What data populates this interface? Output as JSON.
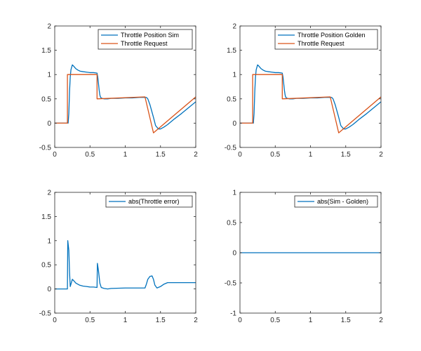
{
  "colors": {
    "series_blue": "#0072BD",
    "series_orange": "#D95319",
    "axes": "#262626",
    "background": "#FFFFFF"
  },
  "chart_data": [
    {
      "type": "line",
      "title": "",
      "xlabel": "",
      "ylabel": "",
      "xlim": [
        0,
        2
      ],
      "ylim": [
        -0.5,
        2
      ],
      "xticks": [
        "0",
        "0.5",
        "1",
        "1.5",
        "2"
      ],
      "yticks": [
        "-0.5",
        "0",
        "0.5",
        "1",
        "1.5",
        "2"
      ],
      "grid": false,
      "legend_position": "top-right",
      "series": [
        {
          "name": "Throttle Position Sim",
          "color": "#0072BD",
          "x": [
            0,
            0.19,
            0.2,
            0.21,
            0.22,
            0.23,
            0.25,
            0.27,
            0.3,
            0.33,
            0.36,
            0.4,
            0.45,
            0.5,
            0.55,
            0.6,
            0.61,
            0.62,
            0.63,
            0.64,
            0.65,
            0.67,
            0.7,
            0.75,
            0.8,
            0.85,
            0.9,
            1.0,
            1.1,
            1.2,
            1.3,
            1.32,
            1.35,
            1.4,
            1.43,
            1.47,
            1.5,
            1.55,
            1.6,
            1.7,
            1.8,
            1.9,
            2.0
          ],
          "y": [
            0,
            0,
            0.2,
            0.65,
            0.95,
            1.1,
            1.2,
            1.17,
            1.12,
            1.09,
            1.07,
            1.06,
            1.05,
            1.04,
            1.04,
            1.03,
            0.95,
            0.82,
            0.68,
            0.58,
            0.53,
            0.51,
            0.5,
            0.5,
            0.51,
            0.51,
            0.51,
            0.52,
            0.52,
            0.53,
            0.53,
            0.5,
            0.38,
            0.12,
            -0.05,
            -0.12,
            -0.12,
            -0.08,
            -0.03,
            0.09,
            0.2,
            0.32,
            0.44
          ]
        },
        {
          "name": "Throttle Request",
          "color": "#D95319",
          "x": [
            0,
            0.18,
            0.18,
            0.6,
            0.6,
            1.28,
            1.4,
            2.0
          ],
          "y": [
            0,
            0,
            1.0,
            1.0,
            0.5,
            0.54,
            -0.2,
            0.54
          ]
        }
      ]
    },
    {
      "type": "line",
      "title": "",
      "xlabel": "",
      "ylabel": "",
      "xlim": [
        0,
        2
      ],
      "ylim": [
        -0.5,
        2
      ],
      "xticks": [
        "0",
        "0.5",
        "1",
        "1.5",
        "2"
      ],
      "yticks": [
        "-0.5",
        "0",
        "0.5",
        "1",
        "1.5",
        "2"
      ],
      "grid": false,
      "legend_position": "top-right",
      "series": [
        {
          "name": "Throttle Position Golden",
          "color": "#0072BD",
          "x": [
            0,
            0.19,
            0.2,
            0.21,
            0.22,
            0.23,
            0.25,
            0.27,
            0.3,
            0.33,
            0.36,
            0.4,
            0.45,
            0.5,
            0.55,
            0.6,
            0.61,
            0.62,
            0.63,
            0.64,
            0.65,
            0.67,
            0.7,
            0.75,
            0.8,
            0.85,
            0.9,
            1.0,
            1.1,
            1.2,
            1.3,
            1.32,
            1.35,
            1.4,
            1.43,
            1.47,
            1.5,
            1.55,
            1.6,
            1.7,
            1.8,
            1.9,
            2.0
          ],
          "y": [
            0,
            0,
            0.2,
            0.65,
            0.95,
            1.1,
            1.2,
            1.17,
            1.12,
            1.09,
            1.07,
            1.06,
            1.05,
            1.04,
            1.04,
            1.03,
            0.95,
            0.82,
            0.68,
            0.58,
            0.53,
            0.51,
            0.5,
            0.5,
            0.51,
            0.51,
            0.51,
            0.52,
            0.52,
            0.53,
            0.53,
            0.5,
            0.38,
            0.12,
            -0.05,
            -0.12,
            -0.12,
            -0.08,
            -0.03,
            0.09,
            0.2,
            0.32,
            0.44
          ]
        },
        {
          "name": "Throttle Request",
          "color": "#D95319",
          "x": [
            0,
            0.18,
            0.18,
            0.6,
            0.6,
            1.28,
            1.4,
            2.0
          ],
          "y": [
            0,
            0,
            1.0,
            1.0,
            0.5,
            0.54,
            -0.2,
            0.54
          ]
        }
      ]
    },
    {
      "type": "line",
      "title": "",
      "xlabel": "",
      "ylabel": "",
      "xlim": [
        0,
        2
      ],
      "ylim": [
        -0.5,
        2
      ],
      "xticks": [
        "0",
        "0.5",
        "1",
        "1.5",
        "2"
      ],
      "yticks": [
        "-0.5",
        "0",
        "0.5",
        "1",
        "1.5",
        "2"
      ],
      "grid": false,
      "legend_position": "top-right",
      "series": [
        {
          "name": "abs(Throttle error)",
          "color": "#0072BD",
          "x": [
            0,
            0.18,
            0.185,
            0.2,
            0.21,
            0.22,
            0.23,
            0.25,
            0.27,
            0.3,
            0.35,
            0.4,
            0.45,
            0.5,
            0.55,
            0.6,
            0.605,
            0.62,
            0.64,
            0.66,
            0.7,
            0.75,
            0.8,
            1.0,
            1.28,
            1.3,
            1.32,
            1.35,
            1.38,
            1.4,
            1.42,
            1.45,
            1.5,
            1.55,
            1.6,
            1.7,
            2.0
          ],
          "y": [
            0,
            0,
            1.0,
            0.8,
            0.35,
            0.05,
            0.1,
            0.2,
            0.17,
            0.12,
            0.08,
            0.06,
            0.05,
            0.04,
            0.04,
            0.03,
            0.53,
            0.38,
            0.12,
            0.03,
            0.01,
            0.0,
            0.01,
            0.02,
            0.02,
            0.1,
            0.2,
            0.26,
            0.27,
            0.2,
            0.08,
            0.02,
            0.05,
            0.1,
            0.13,
            0.13,
            0.13
          ]
        }
      ]
    },
    {
      "type": "line",
      "title": "",
      "xlabel": "",
      "ylabel": "",
      "xlim": [
        0,
        2
      ],
      "ylim": [
        -1,
        1
      ],
      "xticks": [
        "0",
        "0.5",
        "1",
        "1.5",
        "2"
      ],
      "yticks": [
        "-1",
        "-0.5",
        "0",
        "0.5",
        "1"
      ],
      "grid": false,
      "legend_position": "top-right",
      "series": [
        {
          "name": "abs(Sim - Golden)",
          "color": "#0072BD",
          "x": [
            0,
            2
          ],
          "y": [
            0,
            0
          ]
        }
      ]
    }
  ]
}
